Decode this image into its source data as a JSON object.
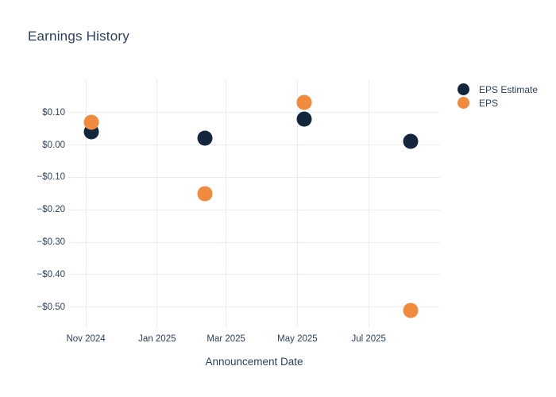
{
  "header": {
    "title": "Earnings History"
  },
  "legend": {
    "position": "right",
    "items": [
      {
        "id": "eps-estimate",
        "label": "EPS Estimate",
        "color": "#14263e"
      },
      {
        "id": "eps",
        "label": "EPS",
        "color": "#f18a3d"
      }
    ]
  },
  "axes": {
    "x_title": "Announcement Date"
  },
  "chart_data": {
    "type": "scatter",
    "title": "Earnings History",
    "xlabel": "Announcement Date",
    "ylabel": "",
    "grid": true,
    "legend_position": "right",
    "x_range": [
      "2024-10-17",
      "2025-08-31"
    ],
    "y_range": [
      -0.552,
      0.202
    ],
    "x_ticks": [
      {
        "date": "2024-11-01",
        "label": "Nov 2024"
      },
      {
        "date": "2025-01-01",
        "label": "Jan 2025"
      },
      {
        "date": "2025-03-01",
        "label": "Mar 2025"
      },
      {
        "date": "2025-05-01",
        "label": "May 2025"
      },
      {
        "date": "2025-07-01",
        "label": "Jul 2025"
      }
    ],
    "y_ticks": [
      {
        "value": 0.1,
        "label": "$0.10"
      },
      {
        "value": 0.0,
        "label": "$0.00"
      },
      {
        "value": -0.1,
        "label": "−$0.10"
      },
      {
        "value": -0.2,
        "label": "−$0.20"
      },
      {
        "value": -0.3,
        "label": "−$0.30"
      },
      {
        "value": -0.4,
        "label": "−$0.40"
      },
      {
        "value": -0.5,
        "label": "−$0.50"
      }
    ],
    "series": [
      {
        "name": "EPS Estimate",
        "color": "#14263e",
        "marker": "circle",
        "points": [
          {
            "x": "2024-11-06",
            "y": 0.04
          },
          {
            "x": "2025-02-11",
            "y": 0.02
          },
          {
            "x": "2025-05-07",
            "y": 0.08
          },
          {
            "x": "2025-08-06",
            "y": 0.01
          }
        ]
      },
      {
        "name": "EPS",
        "color": "#f18a3d",
        "marker": "circle",
        "points": [
          {
            "x": "2024-11-06",
            "y": 0.07
          },
          {
            "x": "2025-02-11",
            "y": -0.15
          },
          {
            "x": "2025-05-07",
            "y": 0.13
          },
          {
            "x": "2025-08-06",
            "y": -0.51
          }
        ]
      }
    ]
  }
}
